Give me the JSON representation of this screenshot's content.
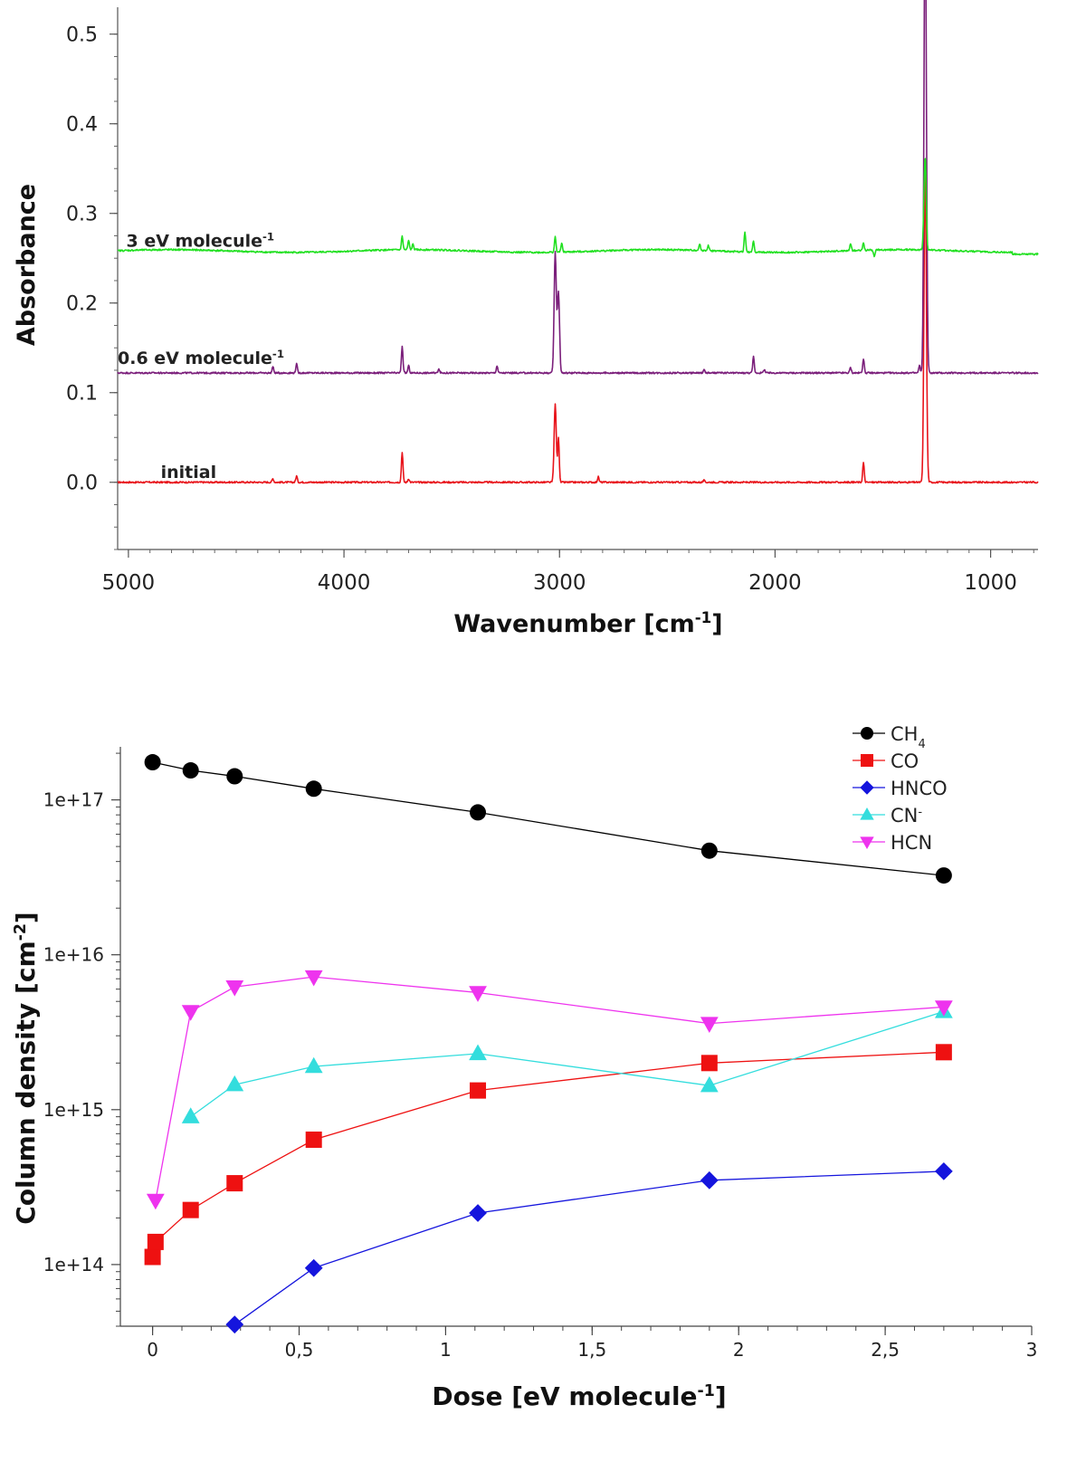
{
  "chart_data": [
    {
      "type": "line",
      "xlabel": "Wavenumber [cm",
      "xlabel_sup": "-1",
      "xlabel_close": "]",
      "ylabel": "Absorbance",
      "xlim": [
        5050,
        780
      ],
      "x_reversed": true,
      "ylim": [
        -0.075,
        0.53
      ],
      "xticks": [
        "5000",
        "4000",
        "3000",
        "2000",
        "1000"
      ],
      "xtick_values": [
        5000,
        4000,
        3000,
        2000,
        1000
      ],
      "yticks": [
        "0.0",
        "0.1",
        "0.2",
        "0.3",
        "0.4",
        "0.5"
      ],
      "ytick_values": [
        0.0,
        0.1,
        0.2,
        0.3,
        0.4,
        0.5
      ],
      "grid": false,
      "series": [
        {
          "label": "initial",
          "label_sup": "",
          "label_anchor": [
            4850,
            0.005
          ],
          "color": "#e8141b",
          "baseline": 0.0,
          "peaks": [
            [
              4330,
              0.004
            ],
            [
              4220,
              0.007
            ],
            [
              3730,
              0.034
            ],
            [
              3700,
              0.004
            ],
            [
              3020,
              0.087
            ],
            [
              3005,
              0.05
            ],
            [
              2820,
              0.006
            ],
            [
              2330,
              0.002
            ],
            [
              1590,
              0.022
            ],
            [
              1305,
              0.28
            ],
            [
              1300,
              0.12
            ]
          ]
        },
        {
          "label": "0.6 eV molecule",
          "label_sup": "-1",
          "label_anchor": [
            5050,
            0.132
          ],
          "color": "#7b1f7b",
          "baseline": 0.122,
          "peaks": [
            [
              4330,
              0.007
            ],
            [
              4220,
              0.01
            ],
            [
              3730,
              0.03
            ],
            [
              3700,
              0.008
            ],
            [
              3560,
              0.005
            ],
            [
              3290,
              0.008
            ],
            [
              3020,
              0.135
            ],
            [
              3005,
              0.09
            ],
            [
              2330,
              0.004
            ],
            [
              2100,
              0.018
            ],
            [
              2050,
              0.004
            ],
            [
              1650,
              0.006
            ],
            [
              1590,
              0.016
            ],
            [
              1330,
              0.008
            ],
            [
              1305,
              0.41
            ],
            [
              1300,
              0.2
            ]
          ]
        },
        {
          "label": "3 eV molecule",
          "label_sup": "-1",
          "label_anchor": [
            5010,
            0.263
          ],
          "color": "#22e022",
          "baseline": 0.258,
          "peaks": [
            [
              3730,
              0.015
            ],
            [
              3700,
              0.01
            ],
            [
              3680,
              0.006
            ],
            [
              3020,
              0.017
            ],
            [
              2990,
              0.01
            ],
            [
              2350,
              0.007
            ],
            [
              2310,
              0.006
            ],
            [
              2140,
              0.022
            ],
            [
              2100,
              0.012
            ],
            [
              1650,
              0.008
            ],
            [
              1590,
              0.008
            ],
            [
              1540,
              -0.007
            ],
            [
              1305,
              0.09
            ],
            [
              1300,
              0.03
            ]
          ]
        }
      ]
    },
    {
      "type": "line",
      "y_scale": "log",
      "xlabel": "Dose [eV molecule",
      "xlabel_sup": "-1",
      "xlabel_close": "]",
      "ylabel": "Column density [cm",
      "ylabel_sup": "-2",
      "ylabel_close": "]",
      "xlim": [
        -0.11,
        3.0
      ],
      "ylim": [
        40000000000000.0,
        2.2e+17
      ],
      "xticks": [
        "0",
        "0,5",
        "1",
        "1,5",
        "2",
        "2,5",
        "3"
      ],
      "xtick_values": [
        0,
        0.5,
        1,
        1.5,
        2,
        2.5,
        3
      ],
      "yticks": [
        "1e+14",
        "1e+15",
        "1e+16",
        "1e+17"
      ],
      "ytick_values": [
        100000000000000.0,
        1000000000000000.0,
        1e+16,
        1e+17
      ],
      "grid": false,
      "legend_position": "top-right",
      "series": [
        {
          "name": "CH",
          "name_sub": "4",
          "name_sup": "",
          "color": "#000000",
          "marker": "circle",
          "x": [
            0.0,
            0.13,
            0.28,
            0.55,
            1.11,
            1.9,
            2.7
          ],
          "y": [
            1.75e+17,
            1.55e+17,
            1.42e+17,
            1.18e+17,
            8.3e+16,
            4.7e+16,
            3.25e+16
          ]
        },
        {
          "name": "CO",
          "name_sub": "",
          "name_sup": "",
          "color": "#ee1111",
          "marker": "square",
          "x": [
            0.0,
            0.01,
            0.13,
            0.28,
            0.55,
            1.11,
            1.9,
            2.7
          ],
          "y": [
            112000000000000.0,
            140000000000000.0,
            225000000000000.0,
            335000000000000.0,
            640000000000000.0,
            1330000000000000.0,
            2000000000000000.0,
            2350000000000000.0
          ]
        },
        {
          "name": "HNCO",
          "name_sub": "",
          "name_sup": "",
          "color": "#1515dd",
          "marker": "diamond",
          "x": [
            0.28,
            0.55,
            1.11,
            1.9,
            2.7
          ],
          "y": [
            41000000000000.0,
            95000000000000.0,
            215000000000000.0,
            350000000000000.0,
            400000000000000.0
          ]
        },
        {
          "name": "CN",
          "name_sub": "",
          "name_sup": "-",
          "color": "#33dddd",
          "marker": "triangle-up",
          "x": [
            0.13,
            0.28,
            0.55,
            1.11,
            1.9,
            2.7
          ],
          "y": [
            900000000000000.0,
            1450000000000000.0,
            1900000000000000.0,
            2300000000000000.0,
            1430000000000000.0,
            4300000000000000.0
          ]
        },
        {
          "name": "HCN",
          "name_sub": "",
          "name_sup": "",
          "color": "#ee33ee",
          "marker": "triangle-down",
          "x": [
            0.01,
            0.13,
            0.28,
            0.55,
            1.11,
            1.9,
            2.7
          ],
          "y": [
            260000000000000.0,
            4300000000000000.0,
            6200000000000000.0,
            7200000000000000.0,
            5700000000000000.0,
            3600000000000000.0,
            4600000000000000.0
          ]
        }
      ]
    }
  ]
}
